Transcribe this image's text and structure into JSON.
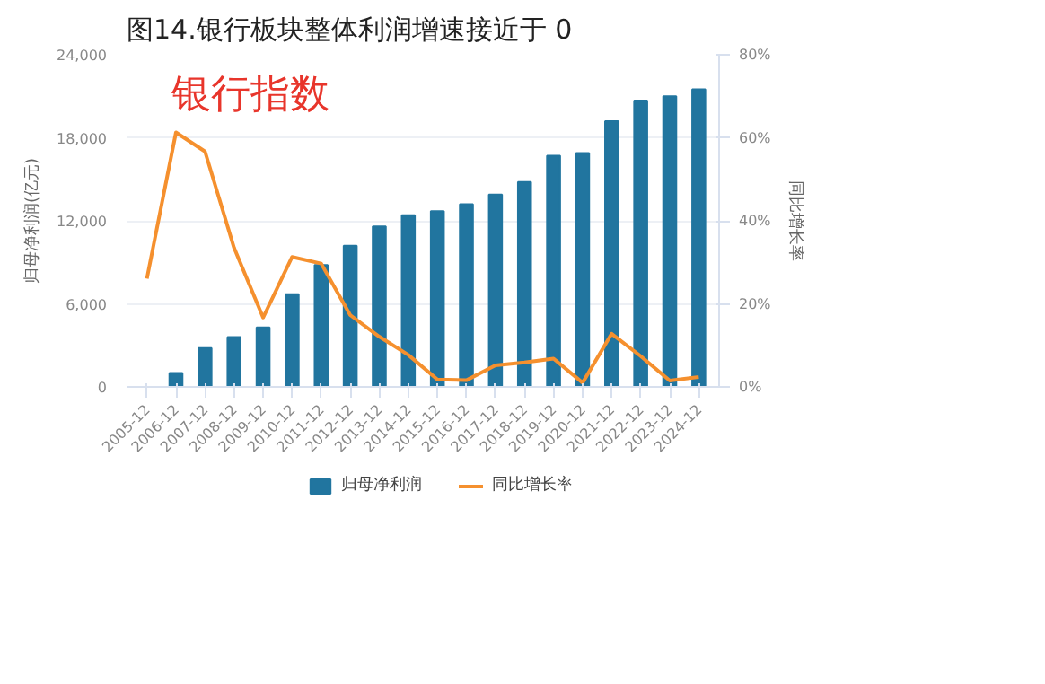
{
  "chart_data": {
    "type": "bar",
    "title": "图14.银行板块整体利润增速接近于 0",
    "categories": [
      "2005-12",
      "2006-12",
      "2007-12",
      "2008-12",
      "2009-12",
      "2010-12",
      "2011-12",
      "2012-12",
      "2013-12",
      "2014-12",
      "2015-12",
      "2016-12",
      "2017-12",
      "2018-12",
      "2019-12",
      "2020-12",
      "2021-12",
      "2022-12",
      "2023-12",
      "2024-12"
    ],
    "series": [
      {
        "name": "归母净利润",
        "color": "#21759f",
        "values": [
          null,
          1000,
          2800,
          3600,
          4300,
          6700,
          8800,
          10200,
          11600,
          12400,
          12700,
          13200,
          13900,
          14800,
          16700,
          16900,
          19200,
          20700,
          21000,
          21500
        ]
      },
      {
        "name": "同比增长率",
        "type": "line",
        "axis": "y2",
        "color": "#f5902e",
        "values": [
          26.1,
          61.3,
          56.7,
          33.5,
          16.7,
          31.3,
          29.7,
          17.3,
          12.1,
          7.7,
          1.8,
          1.6,
          5.2,
          5.9,
          6.8,
          1.0,
          12.8,
          7.4,
          1.5,
          2.4
        ]
      }
    ],
    "ylabel": "归母净利润(亿元)",
    "y2label": "同比增长率",
    "ylim": [
      0,
      24000
    ],
    "yticks": [
      0,
      {
        "value": 6000,
        "label": "6,000"
      },
      {
        "value": 12000,
        "label": "12,000"
      },
      {
        "value": 18000,
        "label": "18,000"
      },
      {
        "value": 24000,
        "label": "24,000"
      }
    ],
    "y2lim": [
      0,
      80
    ],
    "y2ticks": [
      {
        "value": 0,
        "label": "0%"
      },
      {
        "value": 20,
        "label": "20%"
      },
      {
        "value": 40,
        "label": "40%"
      },
      {
        "value": 60,
        "label": "60%"
      },
      {
        "value": 80,
        "label": "80%"
      }
    ],
    "annotations": [
      "银行指数"
    ],
    "grid": "y",
    "legend": "bottom",
    "marker": "none",
    "line_style": "solid"
  }
}
